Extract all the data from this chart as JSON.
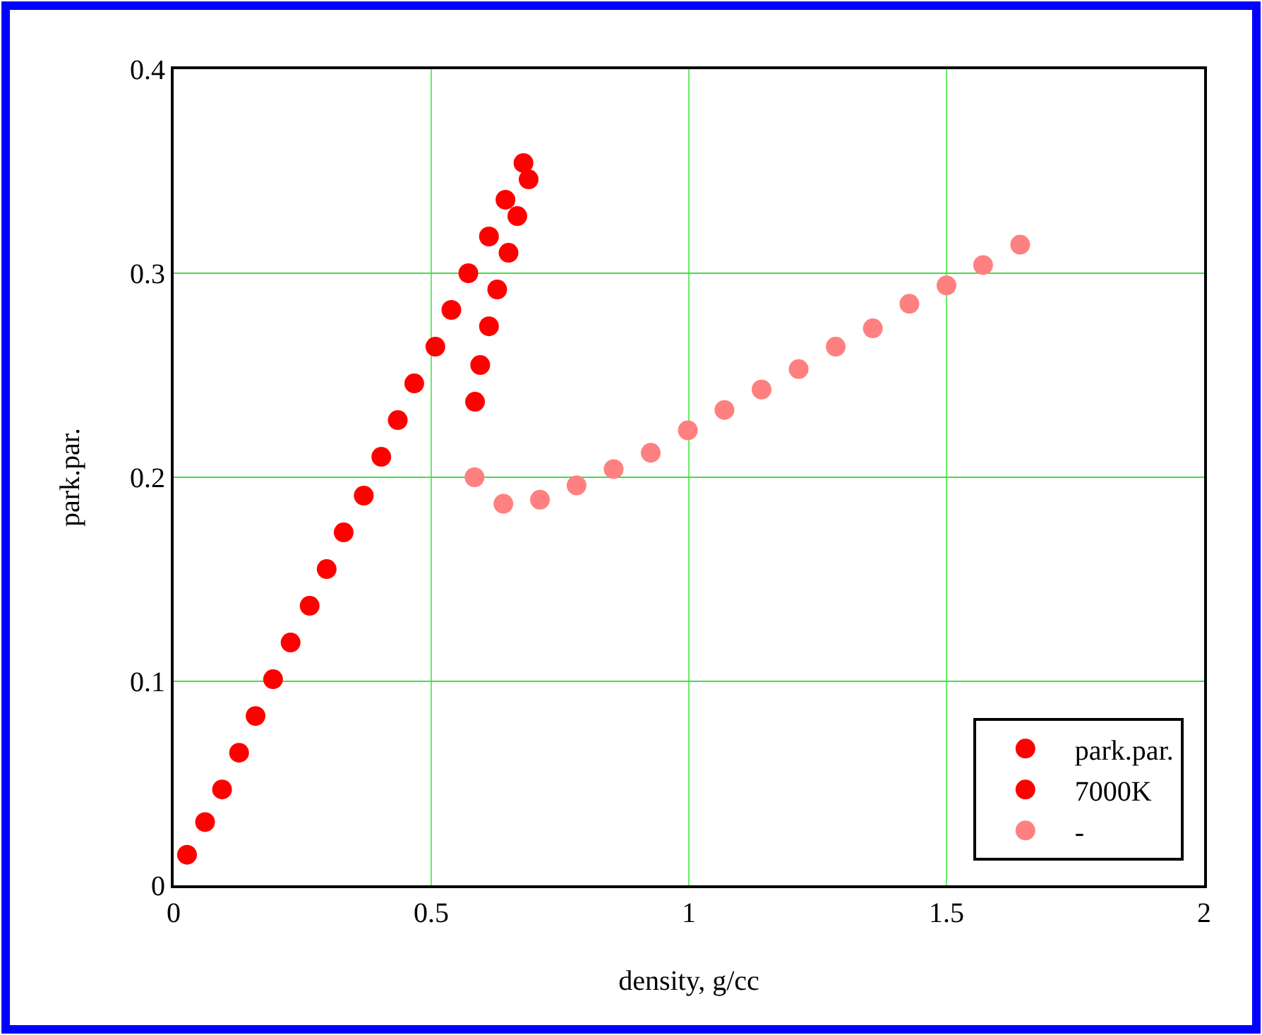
{
  "chart_data": {
    "type": "scatter",
    "xlabel": "density, g/cc",
    "ylabel": "park.par.",
    "xlim": [
      0,
      2
    ],
    "xticks": [
      0,
      0.5,
      1,
      1.5,
      2
    ],
    "ylim": [
      0,
      0.4
    ],
    "yticks": [
      0,
      0.1,
      0.2,
      0.3,
      0.4
    ],
    "grid": true,
    "legend": "bottom right",
    "marker": "circle",
    "series": [
      {
        "name": "park.par.",
        "color": "#ff0000",
        "x": [
          0.026,
          0.061,
          0.094,
          0.127,
          0.159,
          0.193,
          0.227,
          0.264,
          0.297,
          0.33,
          0.369,
          0.403,
          0.435,
          0.467,
          0.508,
          0.539,
          0.572,
          0.612,
          0.644,
          0.679
        ],
        "values": [
          0.015,
          0.031,
          0.047,
          0.065,
          0.083,
          0.101,
          0.119,
          0.137,
          0.155,
          0.173,
          0.191,
          0.21,
          0.228,
          0.246,
          0.264,
          0.282,
          0.3,
          0.318,
          0.336,
          0.354
        ]
      },
      {
        "name": "7000K",
        "color": "#ff0000",
        "x": [
          0.585,
          0.595,
          0.612,
          0.628,
          0.65,
          0.667,
          0.689
        ],
        "values": [
          0.237,
          0.255,
          0.274,
          0.292,
          0.31,
          0.328,
          0.346
        ]
      },
      {
        "name": "-",
        "color": "#ff8080",
        "x": [
          0.584,
          0.64,
          0.711,
          0.782,
          0.854,
          0.926,
          0.998,
          1.069,
          1.141,
          1.213,
          1.285,
          1.357,
          1.428,
          1.5,
          1.571,
          1.643
        ],
        "values": [
          0.2,
          0.187,
          0.189,
          0.196,
          0.204,
          0.212,
          0.223,
          0.233,
          0.243,
          0.253,
          0.264,
          0.273,
          0.285,
          0.294,
          0.304,
          0.314
        ]
      }
    ]
  }
}
